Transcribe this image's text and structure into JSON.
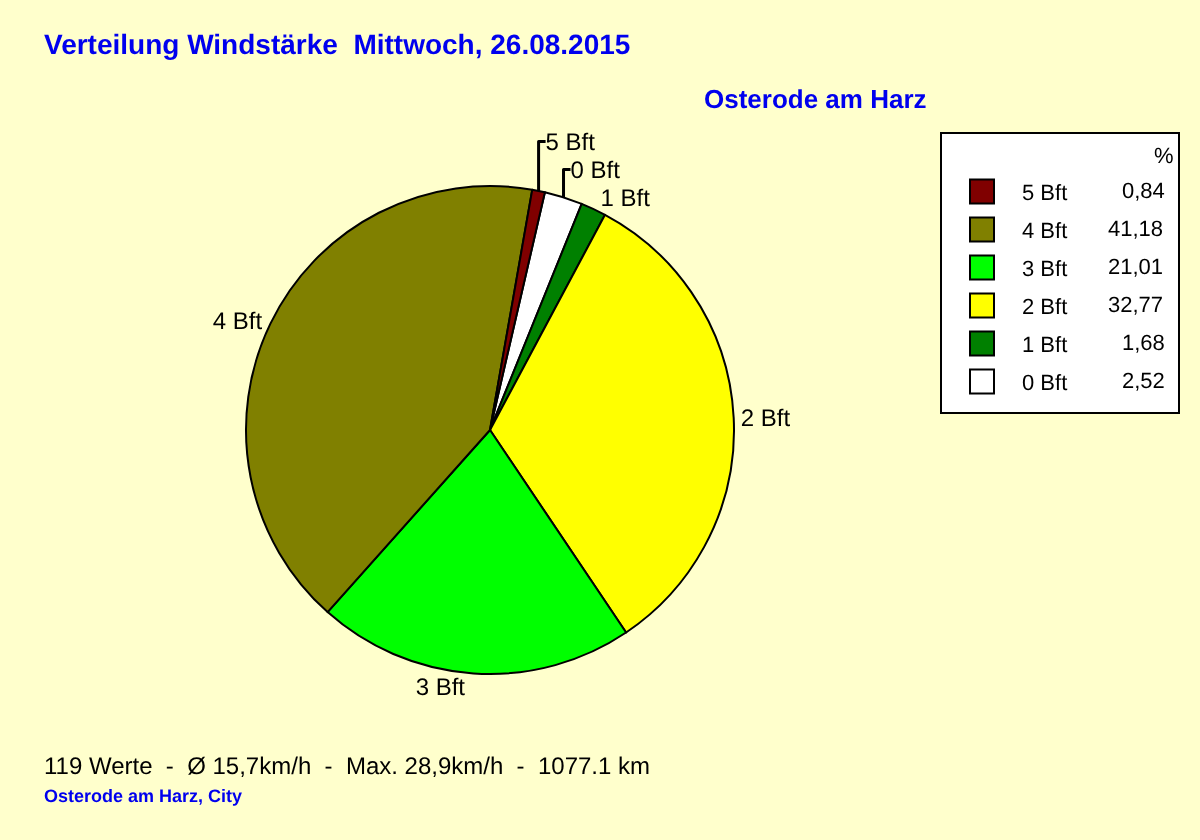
{
  "chart_data": {
    "type": "pie",
    "title": "Verteilung Windstärke  Mittwoch, 26.08.2015",
    "subtitle": "Osterode am Harz",
    "categories": [
      "0 Bft",
      "1 Bft",
      "2 Bft",
      "3 Bft",
      "4 Bft",
      "5 Bft"
    ],
    "values": [
      2.52,
      1.68,
      32.77,
      21.01,
      41.18,
      0.84
    ],
    "value_labels": [
      "2,52",
      "1,68",
      "32,77",
      "21,01",
      "41,18",
      "0,84"
    ],
    "colors": [
      "#ffffff",
      "#008000",
      "#ffff00",
      "#00ff00",
      "#808000",
      "#800000"
    ],
    "legend": "top right",
    "legend_title": "%",
    "annotations": [
      "119 Werte  -  Ø 15,7km/h  -  Max. 28,9km/h  -  1077.1 km",
      "Osterode am Harz, City"
    ]
  }
}
